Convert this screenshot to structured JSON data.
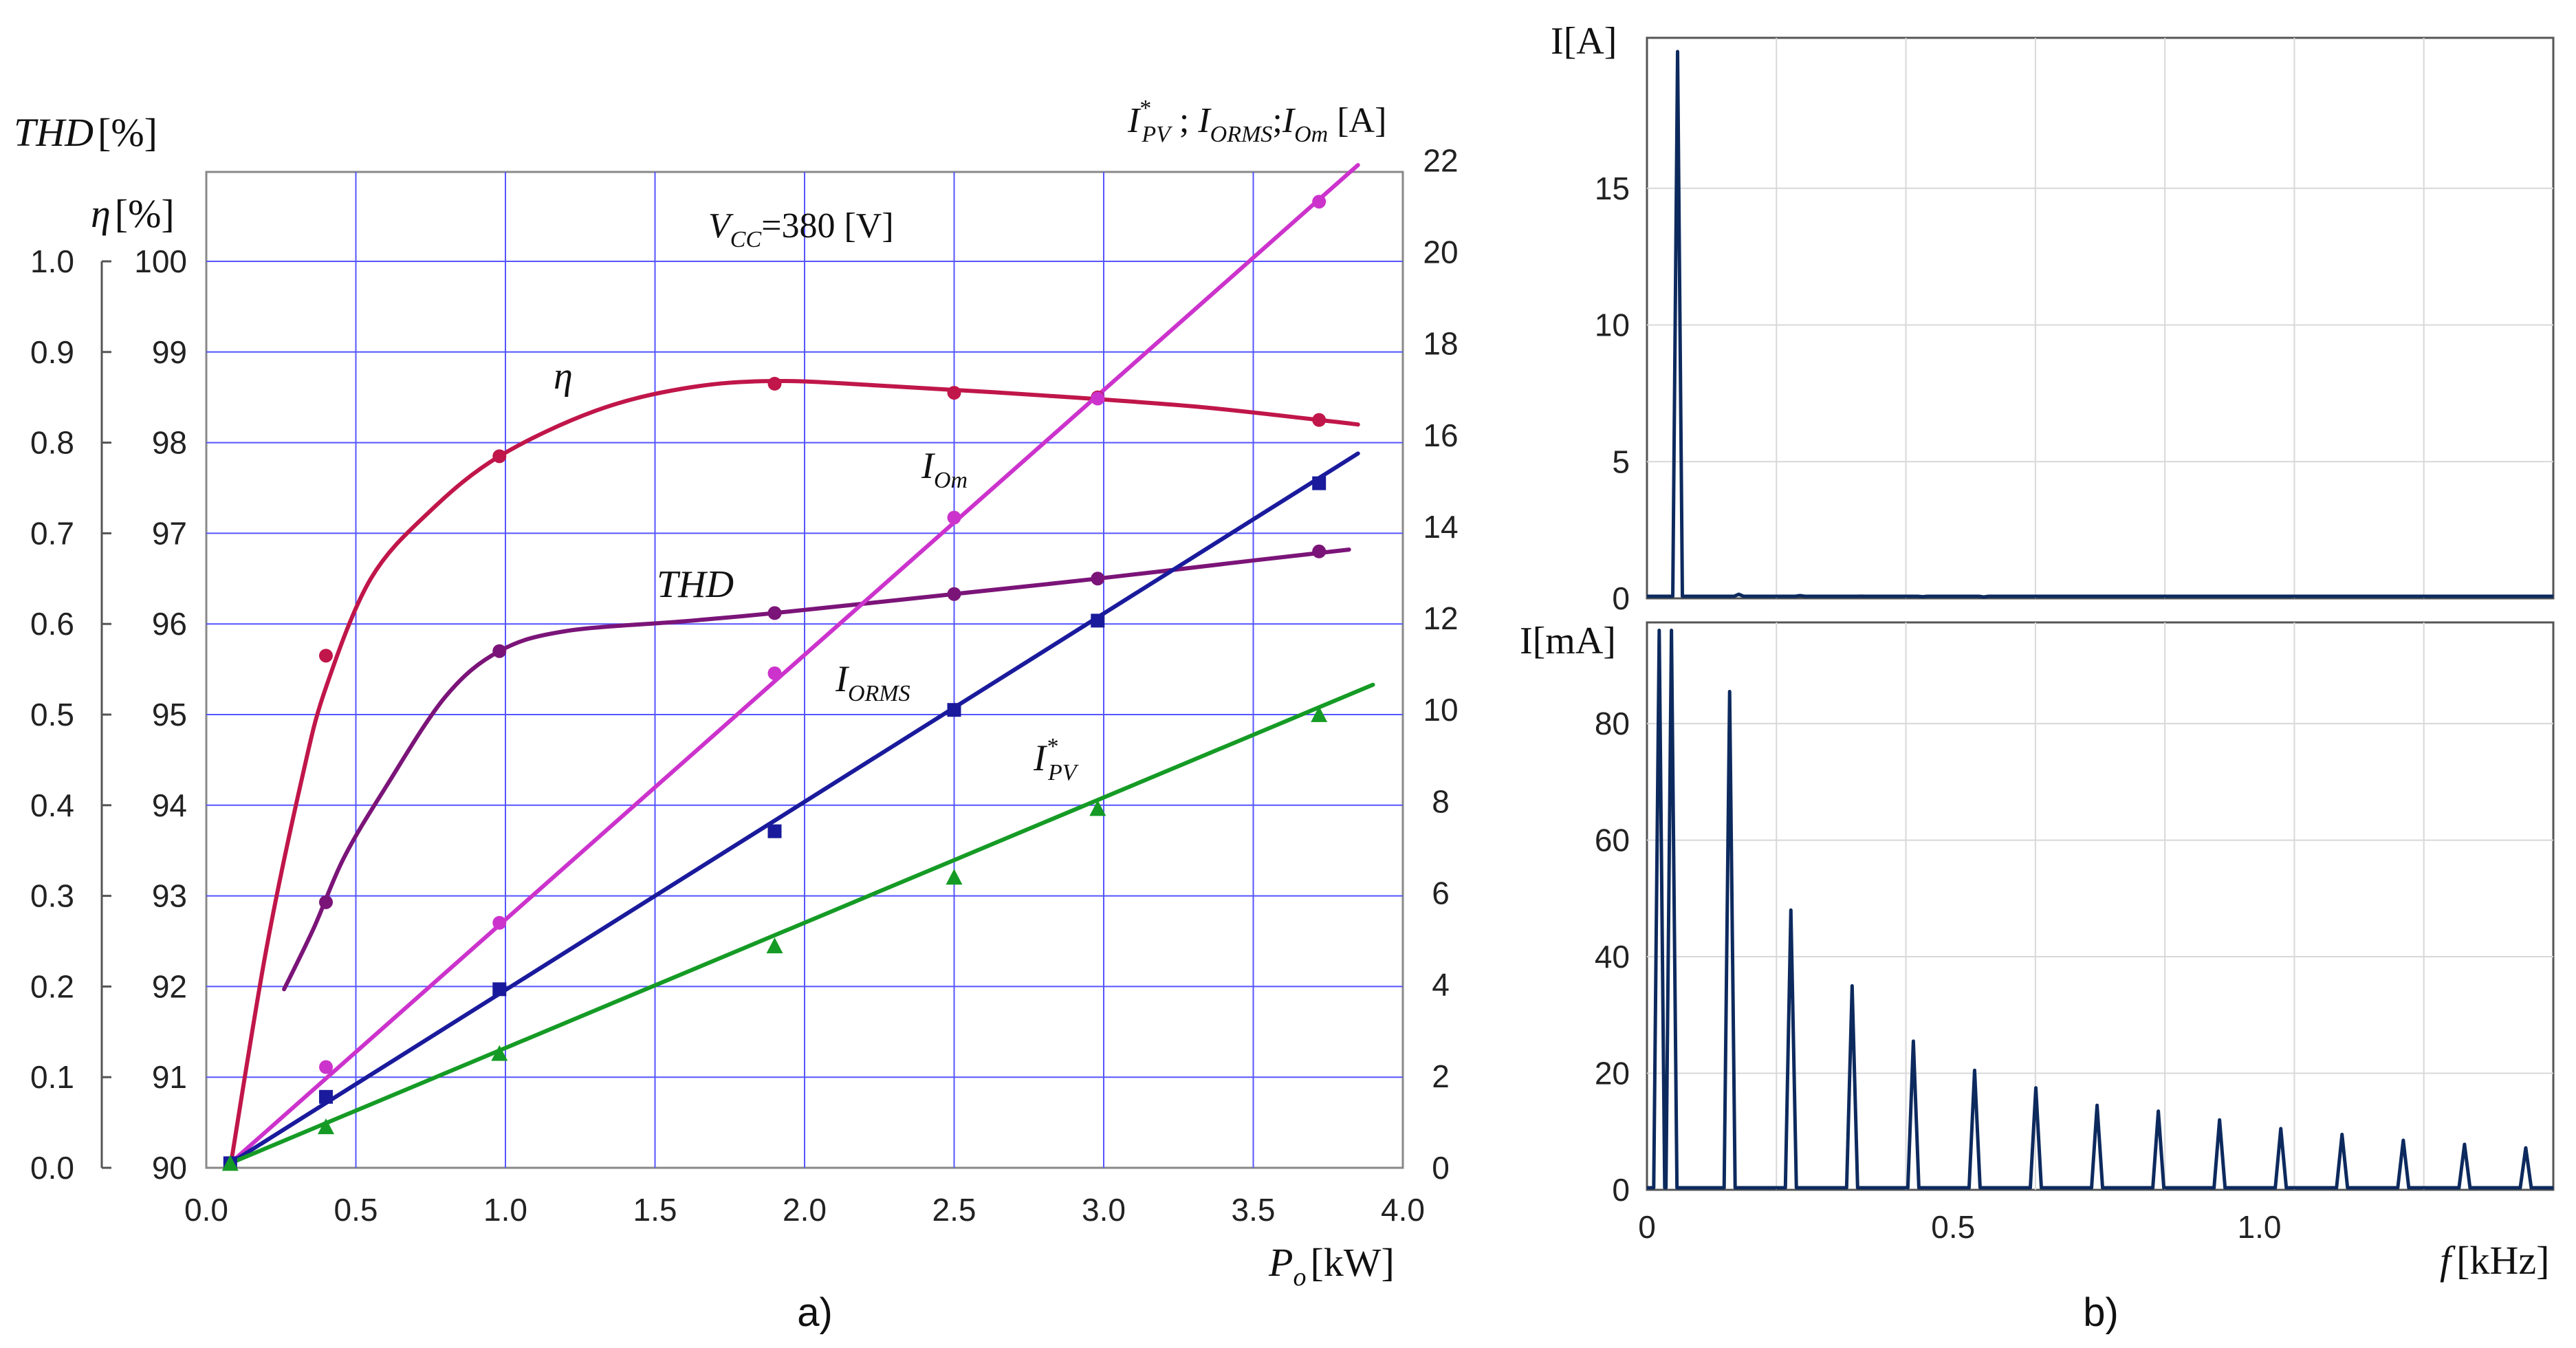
{
  "chart_data": [
    {
      "id": "a",
      "type": "line",
      "panel_label": "a)",
      "annotation": "380 [V]",
      "annotation_symbol": "V",
      "annotation_subscript": "CC",
      "xlabel": "[kW]",
      "xlabel_symbol": "P",
      "xlabel_subscript": "o",
      "xlim": [
        0,
        4.0
      ],
      "x_ticks": [
        "0.0",
        "0.5",
        "1.0",
        "1.5",
        "2.0",
        "2.5",
        "3.0",
        "3.5",
        "4.0"
      ],
      "y_thd_label": "[%]",
      "y_thd_symbol": "THD",
      "y_thd_ticks": [
        "0.0",
        "0.1",
        "0.2",
        "0.3",
        "0.4",
        "0.5",
        "0.6",
        "0.7",
        "0.8",
        "0.9",
        "1.0"
      ],
      "y_eta_label": "[%]",
      "y_eta_symbol": "η",
      "y_eta_ticks": [
        "90",
        "91",
        "92",
        "93",
        "94",
        "95",
        "96",
        "97",
        "98",
        "99",
        "100"
      ],
      "y_right_label_parts": [
        "I",
        "*",
        "PV",
        " ; ",
        "I",
        "ORMS",
        ";",
        "I",
        "Om",
        " [A]"
      ],
      "y_right_ticks": [
        "0",
        "2",
        "4",
        "6",
        "8",
        "10",
        "12",
        "14",
        "16",
        "18",
        "20",
        "22"
      ],
      "colors": {
        "eta": "#c0164a",
        "thd": "#7b1478",
        "iom": "#cc33cc",
        "iorms": "#1a1a9c",
        "ipv": "#159b25",
        "grid": "#5555ff"
      },
      "series": [
        {
          "name": "η",
          "axis": "eta",
          "marker": "circle",
          "points": [
            [
              0.4,
              95.65
            ],
            [
              0.98,
              97.85
            ],
            [
              1.9,
              98.65
            ],
            [
              2.5,
              98.55
            ],
            [
              2.98,
              98.5
            ],
            [
              3.72,
              98.25
            ]
          ],
          "curve": [
            [
              0.08,
              90.0
            ],
            [
              0.2,
              92.4
            ],
            [
              0.32,
              94.3
            ],
            [
              0.4,
              95.3
            ],
            [
              0.55,
              96.5
            ],
            [
              0.75,
              97.25
            ],
            [
              0.98,
              97.85
            ],
            [
              1.3,
              98.35
            ],
            [
              1.6,
              98.6
            ],
            [
              1.9,
              98.68
            ],
            [
              2.3,
              98.62
            ],
            [
              2.8,
              98.52
            ],
            [
              3.3,
              98.4
            ],
            [
              3.72,
              98.25
            ],
            [
              3.85,
              98.2
            ]
          ],
          "label": "η"
        },
        {
          "name": "THD",
          "axis": "thd",
          "marker": "circle",
          "points": [
            [
              0.4,
              0.293
            ],
            [
              0.98,
              0.57
            ],
            [
              1.9,
              0.612
            ],
            [
              2.5,
              0.633
            ],
            [
              2.98,
              0.65
            ],
            [
              3.72,
              0.68
            ]
          ],
          "curve": [
            [
              0.26,
              0.197
            ],
            [
              0.36,
              0.265
            ],
            [
              0.46,
              0.342
            ],
            [
              0.6,
              0.42
            ],
            [
              0.8,
              0.52
            ],
            [
              0.98,
              0.57
            ],
            [
              1.2,
              0.592
            ],
            [
              1.6,
              0.603
            ],
            [
              1.9,
              0.612
            ],
            [
              2.5,
              0.633
            ],
            [
              2.98,
              0.65
            ],
            [
              3.5,
              0.67
            ],
            [
              3.82,
              0.682
            ]
          ],
          "label": "THD"
        },
        {
          "name": "I_Om",
          "axis": "current",
          "marker": "circle",
          "points": [
            [
              0.08,
              0.1
            ],
            [
              0.4,
              2.2
            ],
            [
              0.98,
              5.35
            ],
            [
              1.9,
              10.8
            ],
            [
              2.5,
              14.2
            ],
            [
              2.98,
              16.8
            ],
            [
              3.72,
              21.1
            ]
          ],
          "curve": [
            [
              0.08,
              0.1
            ],
            [
              3.85,
              21.9
            ]
          ],
          "label_parts": [
            "I",
            "Om"
          ]
        },
        {
          "name": "I_ORMS",
          "axis": "current",
          "marker": "square",
          "points": [
            [
              0.08,
              0.1
            ],
            [
              0.4,
              1.55
            ],
            [
              0.98,
              3.9
            ],
            [
              1.9,
              7.35
            ],
            [
              2.5,
              10.0
            ],
            [
              2.98,
              11.95
            ],
            [
              3.72,
              14.95
            ]
          ],
          "curve": [
            [
              0.08,
              0.1
            ],
            [
              3.85,
              15.6
            ]
          ],
          "label_parts": [
            "I",
            "ORMS"
          ]
        },
        {
          "name": "I*_PV",
          "axis": "current",
          "marker": "triangle",
          "points": [
            [
              0.08,
              0.1
            ],
            [
              0.4,
              0.9
            ],
            [
              0.98,
              2.5
            ],
            [
              1.9,
              4.85
            ],
            [
              2.5,
              6.35
            ],
            [
              2.98,
              7.85
            ],
            [
              3.72,
              9.9
            ]
          ],
          "curve": [
            [
              0.08,
              0.1
            ],
            [
              3.9,
              10.55
            ]
          ],
          "label_parts": [
            "I",
            "*",
            "PV"
          ]
        }
      ]
    },
    {
      "id": "b_top",
      "type": "line",
      "ylabel": "I[A]",
      "ylim": [
        0,
        20
      ],
      "y_ticks": [
        "0",
        "5",
        "10",
        "15"
      ],
      "xlim": [
        0,
        1.48
      ],
      "line_color": "#0d2a5e",
      "spikes": [
        [
          0.05,
          20.0
        ],
        [
          0.15,
          0.15
        ],
        [
          0.25,
          0.1
        ],
        [
          0.35,
          0.08
        ],
        [
          0.45,
          0.06
        ],
        [
          0.55,
          0.05
        ]
      ]
    },
    {
      "id": "b_bottom",
      "type": "line",
      "panel_label": "b)",
      "ylabel": "I[mA]",
      "ylim": [
        0,
        95
      ],
      "y_ticks": [
        "0",
        "20",
        "40",
        "60",
        "80"
      ],
      "xlim": [
        0,
        1.48
      ],
      "x_ticks": [
        "0",
        "0.5",
        "1.0"
      ],
      "xlabel": "[kHz]",
      "xlabel_symbol": "f",
      "line_color": "#0d2a5e",
      "spikes": [
        [
          0.02,
          96
        ],
        [
          0.04,
          96
        ],
        [
          0.135,
          85.5
        ],
        [
          0.235,
          48
        ],
        [
          0.335,
          35
        ],
        [
          0.435,
          25.5
        ],
        [
          0.535,
          20.5
        ],
        [
          0.635,
          17.5
        ],
        [
          0.735,
          14.5
        ],
        [
          0.835,
          13.5
        ],
        [
          0.935,
          12
        ],
        [
          1.035,
          10.5
        ],
        [
          1.135,
          9.5
        ],
        [
          1.235,
          8.5
        ],
        [
          1.335,
          7.8
        ],
        [
          1.435,
          7.2
        ]
      ]
    }
  ]
}
